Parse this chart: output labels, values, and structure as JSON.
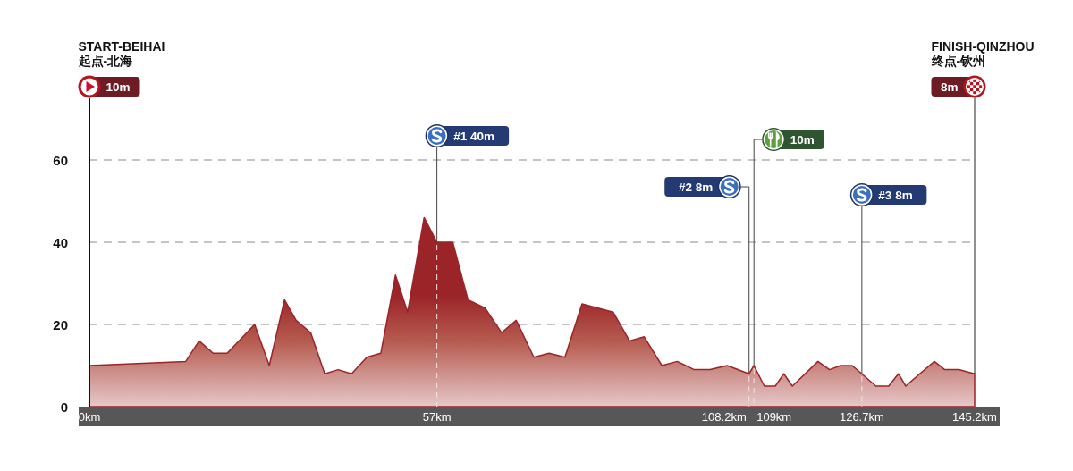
{
  "chart_data": {
    "type": "area",
    "x": [
      0,
      15.8,
      18,
      20.3,
      22.6,
      27.1,
      29.5,
      32,
      33.9,
      36.3,
      38.6,
      40.8,
      43,
      45.5,
      47.8,
      50.2,
      52.2,
      54.9,
      57,
      59.6,
      62.1,
      64.9,
      67.6,
      70,
      72.9,
      75.4,
      78,
      80.8,
      85.9,
      88.6,
      91,
      93.9,
      96.4,
      99.2,
      101.8,
      104.6,
      108.2,
      109,
      110.7,
      112.5,
      113.9,
      115.3,
      119.5,
      121.4,
      123.2,
      125.1,
      126.7,
      129,
      131.1,
      132.7,
      133.9,
      136.2,
      138.6,
      140.3,
      142.6,
      145.2
    ],
    "values": [
      10,
      11,
      16,
      13,
      13,
      20,
      10,
      26,
      21,
      18,
      8,
      9,
      8,
      12,
      13,
      32,
      23,
      46,
      40,
      40,
      26,
      24,
      18,
      21,
      12,
      13,
      12,
      25,
      23,
      16,
      17,
      10,
      11,
      9,
      9,
      10,
      8,
      10,
      5,
      5,
      8,
      5,
      11,
      9,
      10,
      10,
      8,
      5,
      5,
      8,
      5,
      8,
      11,
      9,
      9,
      8
    ],
    "color": "#9b2428",
    "xlim": [
      0,
      145.2
    ],
    "xticks": [
      {
        "value": 0,
        "label": "0km"
      },
      {
        "value": 57,
        "label": "57km"
      },
      {
        "value": 126.7,
        "label": "126.7km"
      },
      {
        "value": 145.2,
        "label": "145.2km"
      }
    ],
    "ylim": [
      0,
      75
    ],
    "yticks": [
      0,
      20,
      40,
      60
    ],
    "grid": "y",
    "ref_lines": [
      {
        "axis": "x",
        "value": 57,
        "label": "#1 40m"
      },
      {
        "axis": "x",
        "value": 108.2,
        "label": "#2 8m"
      },
      {
        "axis": "x",
        "value": 109,
        "label": "10m"
      },
      {
        "axis": "x",
        "value": 126.7,
        "label": "#3 8m"
      },
      {
        "axis": "x",
        "value": 145.2,
        "label": "8m"
      }
    ],
    "annotations": [
      "START-BEIHAI",
      "起点-北海",
      "10m",
      "FINISH-QINZHOU",
      "终点-钦州",
      {
        "text": "108.2km",
        "x": 108.2,
        "y": 0
      },
      {
        "text": "109km",
        "x": 109,
        "y": 0
      }
    ]
  }
}
